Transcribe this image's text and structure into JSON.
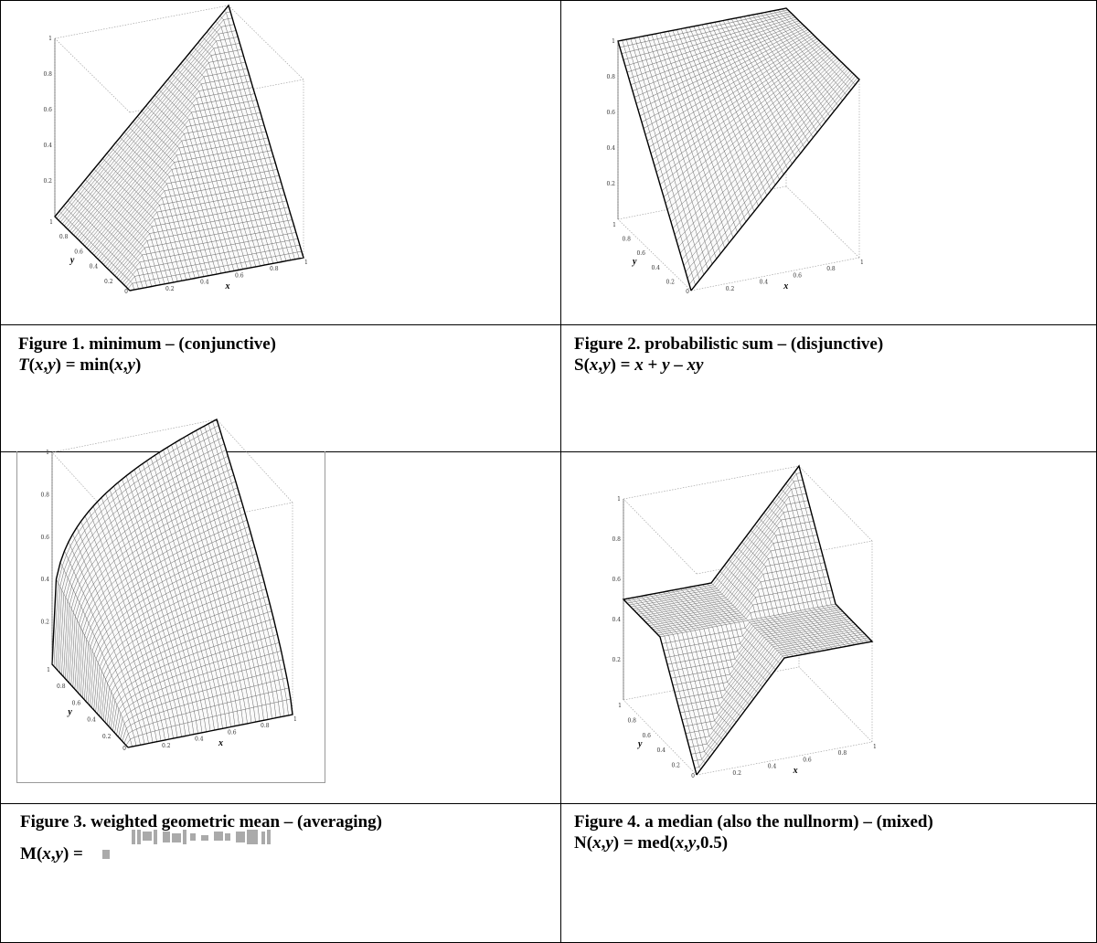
{
  "figures": [
    {
      "title": "Figure 1.  minimum – (conjunctive)",
      "formula_lhs": "T",
      "formula_args": "(x,y)",
      "formula_rhs": " = min(x,y)",
      "axis_x": "x",
      "axis_y": "y"
    },
    {
      "title": "Figure 2. probabilistic sum – (disjunctive)",
      "formula_lhs": "S",
      "formula_args": "(x,y)",
      "formula_rhs": " = x + y – xy",
      "axis_x": "x",
      "axis_y": "y"
    },
    {
      "title": "Figure 3. weighted geometric mean – (averaging)",
      "formula_lhs": "M",
      "formula_args": "(x,y)",
      "formula_rhs": " = ",
      "axis_x": "x",
      "axis_y": "y"
    },
    {
      "title": "Figure 4. a median (also the nullnorm) – (mixed)",
      "formula_lhs": "N",
      "formula_args": "(x,y)",
      "formula_rhs": " = med(x,y,0.5)",
      "axis_x": "x",
      "axis_y": "y"
    }
  ],
  "ticks": {
    "z": [
      "0.2",
      "0.4",
      "0.6",
      "0.8",
      "1"
    ],
    "x": [
      "0.2",
      "0.4",
      "0.6",
      "0.8",
      "1"
    ],
    "y": [
      "0.2",
      "0.4",
      "0.6",
      "0.8",
      "1"
    ],
    "origin": "0"
  },
  "chart_data": [
    {
      "type": "surface",
      "function": "min",
      "x_range": [
        0,
        1
      ],
      "y_range": [
        0,
        1
      ],
      "z_range": [
        0,
        1
      ]
    },
    {
      "type": "surface",
      "function": "probabilistic_sum",
      "x_range": [
        0,
        1
      ],
      "y_range": [
        0,
        1
      ],
      "z_range": [
        0,
        1
      ]
    },
    {
      "type": "surface",
      "function": "weighted_geometric_mean",
      "x_range": [
        0,
        1
      ],
      "y_range": [
        0,
        1
      ],
      "z_range": [
        0,
        1
      ]
    },
    {
      "type": "surface",
      "function": "median_0.5",
      "x_range": [
        0,
        1
      ],
      "y_range": [
        0,
        1
      ],
      "z_range": [
        0,
        1
      ]
    }
  ]
}
